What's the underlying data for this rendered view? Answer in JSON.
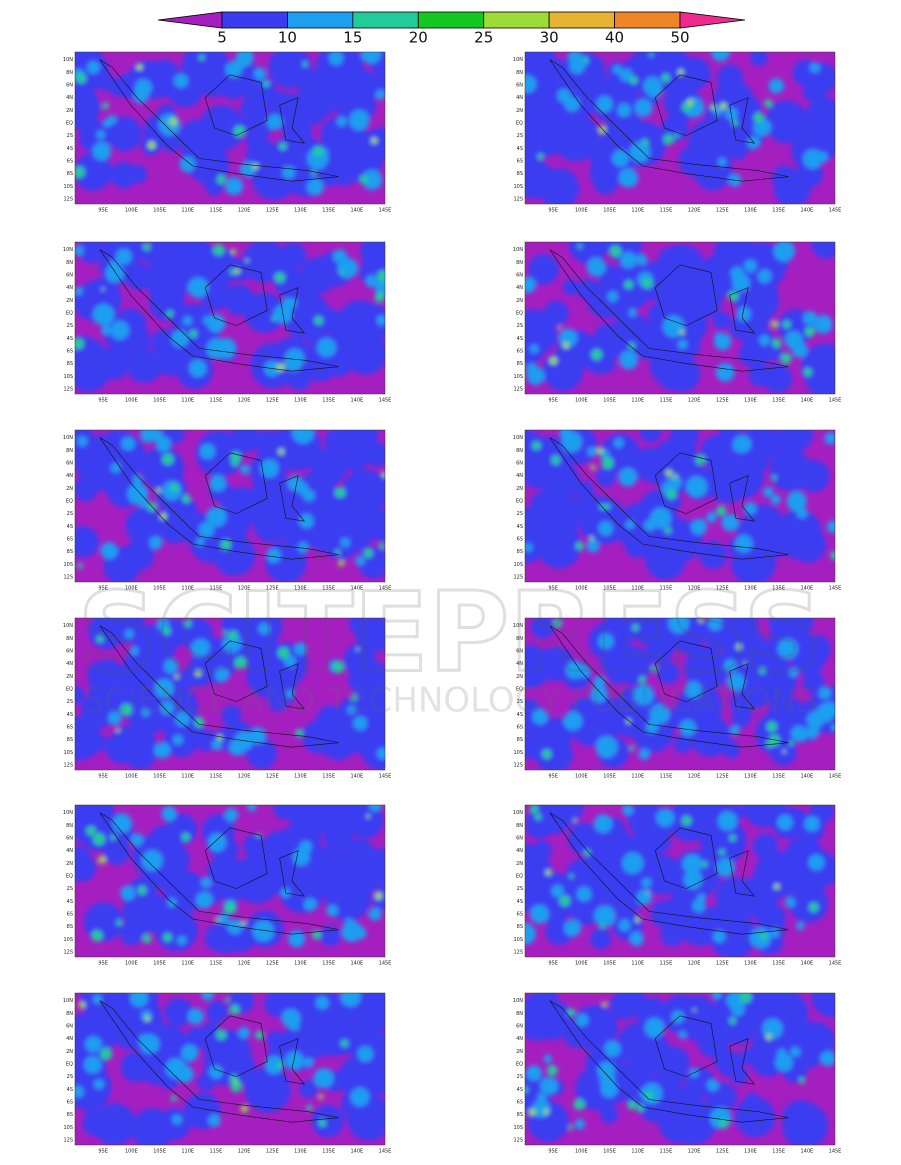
{
  "colorbar": {
    "levels": [
      "5",
      "10",
      "15",
      "20",
      "25",
      "30",
      "40",
      "50"
    ],
    "colors": [
      "#a51fc0",
      "#3a3cf0",
      "#1d9ff0",
      "#22cc99",
      "#14c824",
      "#9ddc36",
      "#e6b432",
      "#f08428",
      "#ef2a8f"
    ]
  },
  "lat_ticks": [
    "10N",
    "8N",
    "6N",
    "4N",
    "2N",
    "EQ",
    "2S",
    "4S",
    "6S",
    "8S",
    "10S",
    "12S"
  ],
  "lon_ticks": [
    "95E",
    "100E",
    "105E",
    "110E",
    "115E",
    "120E",
    "125E",
    "130E",
    "135E",
    "140E",
    "145E"
  ],
  "watermark": {
    "title": "SCITEPRESS",
    "subtitle": "SCIENCE AND TECHNOLOGY PUBLICATIONS"
  }
}
